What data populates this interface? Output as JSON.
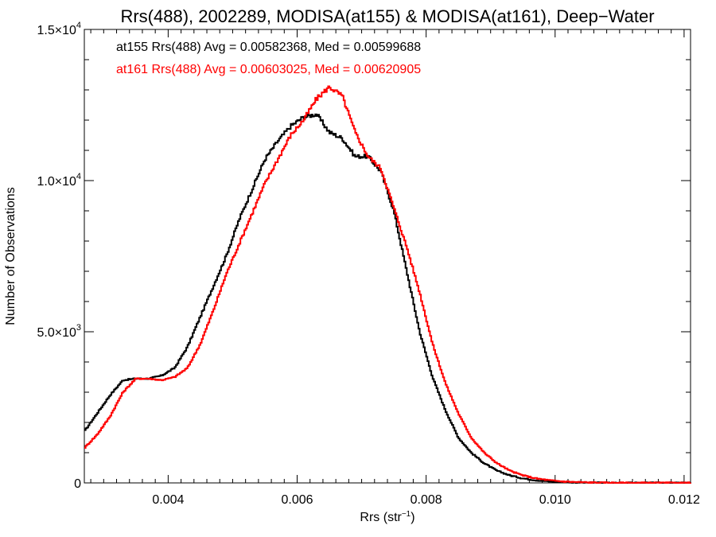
{
  "chart_data": {
    "type": "line",
    "title": "Rrs(488), 2002289, MODISA(at155) & MODISA(at161), Deep−Water",
    "xlabel": "Rrs (str",
    "xlabel_sup": "−1",
    "xlabel_close": ")",
    "ylabel": "Number of Observations",
    "xlim": [
      0.0027,
      0.0121
    ],
    "ylim": [
      0,
      15000
    ],
    "x_ticks": [
      {
        "value": 0.004,
        "label": "0.004"
      },
      {
        "value": 0.006,
        "label": "0.006"
      },
      {
        "value": 0.008,
        "label": "0.008"
      },
      {
        "value": 0.01,
        "label": "0.010"
      },
      {
        "value": 0.012,
        "label": "0.012"
      }
    ],
    "y_ticks": [
      {
        "value": 0,
        "mant": "0",
        "exp": ""
      },
      {
        "value": 5000,
        "mant": "5.0×10",
        "exp": "3"
      },
      {
        "value": 10000,
        "mant": "1.0×10",
        "exp": "4"
      },
      {
        "value": 15000,
        "mant": "1.5×10",
        "exp": "4"
      }
    ],
    "grid": false,
    "legend_position": "top-left",
    "series": [
      {
        "name": "at155",
        "label": "at155 Rrs(488) Avg = 0.00582368, Med = 0.00599688",
        "color": "#000000",
        "x": [
          0.0027,
          0.0029,
          0.0031,
          0.0033,
          0.0035,
          0.0037,
          0.0039,
          0.0041,
          0.0043,
          0.0045,
          0.0047,
          0.0049,
          0.0051,
          0.0053,
          0.0055,
          0.0057,
          0.0059,
          0.0061,
          0.0063,
          0.0065,
          0.0067,
          0.0069,
          0.0071,
          0.0073,
          0.0075,
          0.0077,
          0.0079,
          0.0081,
          0.0083,
          0.0085,
          0.0087,
          0.0089,
          0.0091,
          0.0093,
          0.0095,
          0.0097,
          0.0099,
          0.0101,
          0.0103,
          0.0105,
          0.0107,
          0.011,
          0.0115,
          0.0121
        ],
        "values": [
          1700,
          2300,
          2900,
          3400,
          3450,
          3450,
          3550,
          3800,
          4500,
          5500,
          6500,
          7500,
          8700,
          9700,
          10700,
          11300,
          11800,
          12100,
          12200,
          11600,
          11400,
          10800,
          10800,
          10300,
          9000,
          7000,
          5000,
          3500,
          2400,
          1500,
          1000,
          650,
          400,
          250,
          150,
          90,
          50,
          30,
          20,
          10,
          5,
          3,
          1,
          0
        ]
      },
      {
        "name": "at161",
        "label": "at161 Rrs(488) Avg = 0.00603025, Med = 0.00620905",
        "color": "#ff0000",
        "x": [
          0.0027,
          0.0029,
          0.0031,
          0.0033,
          0.0035,
          0.0037,
          0.0039,
          0.0041,
          0.0043,
          0.0045,
          0.0047,
          0.0049,
          0.0051,
          0.0053,
          0.0055,
          0.0057,
          0.0059,
          0.0061,
          0.0063,
          0.0065,
          0.0067,
          0.0069,
          0.0071,
          0.0073,
          0.0075,
          0.0077,
          0.0079,
          0.0081,
          0.0083,
          0.0085,
          0.0087,
          0.0089,
          0.0091,
          0.0093,
          0.0095,
          0.0097,
          0.0099,
          0.0101,
          0.0103,
          0.0105,
          0.0107,
          0.011,
          0.0115,
          0.0121
        ],
        "values": [
          1150,
          1600,
          2200,
          3000,
          3450,
          3450,
          3400,
          3500,
          3800,
          4600,
          5700,
          6900,
          7900,
          8900,
          9900,
          10700,
          11500,
          12000,
          12700,
          13100,
          12800,
          11600,
          10800,
          10400,
          9100,
          7800,
          6300,
          4600,
          3300,
          2300,
          1500,
          1000,
          650,
          400,
          250,
          150,
          90,
          50,
          30,
          15,
          8,
          3,
          1,
          0
        ]
      }
    ]
  }
}
